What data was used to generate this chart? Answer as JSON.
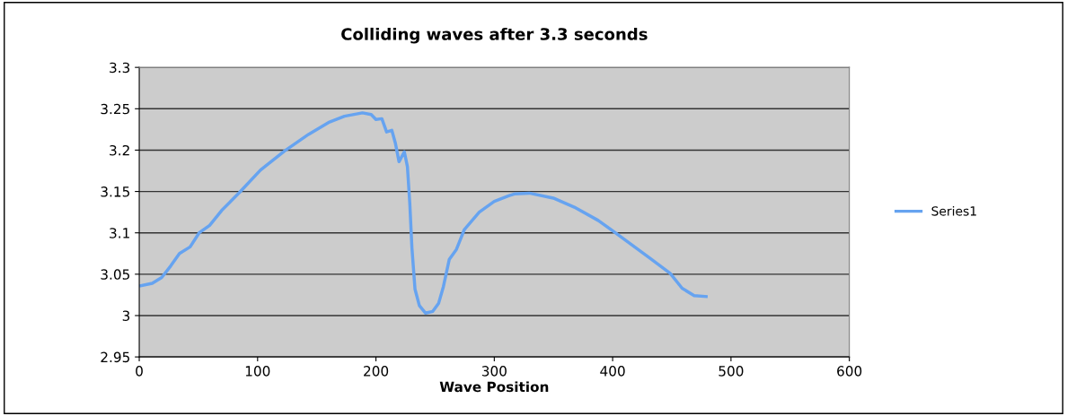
{
  "chart_data": {
    "type": "line",
    "title": "Colliding waves after 3.3 seconds",
    "xlabel": "Wave Position",
    "series": [
      {
        "name": "Series1",
        "color": "#66a3f0",
        "x": [
          1.3,
          11,
          19,
          26.6,
          34,
          43,
          50.6,
          59.5,
          69.6,
          84.8,
          102.5,
          122.8,
          143,
          160.8,
          173.4,
          188.6,
          196,
          200,
          205,
          209,
          213.4,
          216.5,
          219.5,
          224,
          226.6,
          228.6,
          230.4,
          233,
          236.7,
          241.8,
          248,
          253,
          257,
          262,
          268,
          274.7,
          287.3,
          300,
          312.7,
          317,
          329.6,
          349.9,
          367.6,
          387.8,
          400.5,
          415.7,
          430.9,
          448.6,
          458.7,
          468.9,
          479
        ],
        "values": [
          3.036,
          3.039,
          3.046,
          3.06,
          3.075,
          3.083,
          3.1,
          3.109,
          3.127,
          3.149,
          3.176,
          3.199,
          3.219,
          3.234,
          3.241,
          3.245,
          3.243,
          3.237,
          3.238,
          3.222,
          3.224,
          3.208,
          3.186,
          3.198,
          3.18,
          3.136,
          3.082,
          3.032,
          3.012,
          3.003,
          3.005,
          3.015,
          3.035,
          3.068,
          3.08,
          3.104,
          3.125,
          3.138,
          3.145,
          3.147,
          3.148,
          3.142,
          3.131,
          3.115,
          3.102,
          3.086,
          3.07,
          3.051,
          3.033,
          3.024,
          3.023
        ]
      }
    ],
    "xlim": [
      0,
      600
    ],
    "xticks": [
      0,
      100,
      200,
      300,
      400,
      500,
      600
    ],
    "ylim": [
      2.95,
      3.3
    ],
    "yticks": [
      2.95,
      3,
      3.05,
      3.1,
      3.15,
      3.2,
      3.25,
      3.3
    ],
    "grid": "y",
    "legend": "right",
    "marker": "none",
    "line_style": "solid"
  }
}
